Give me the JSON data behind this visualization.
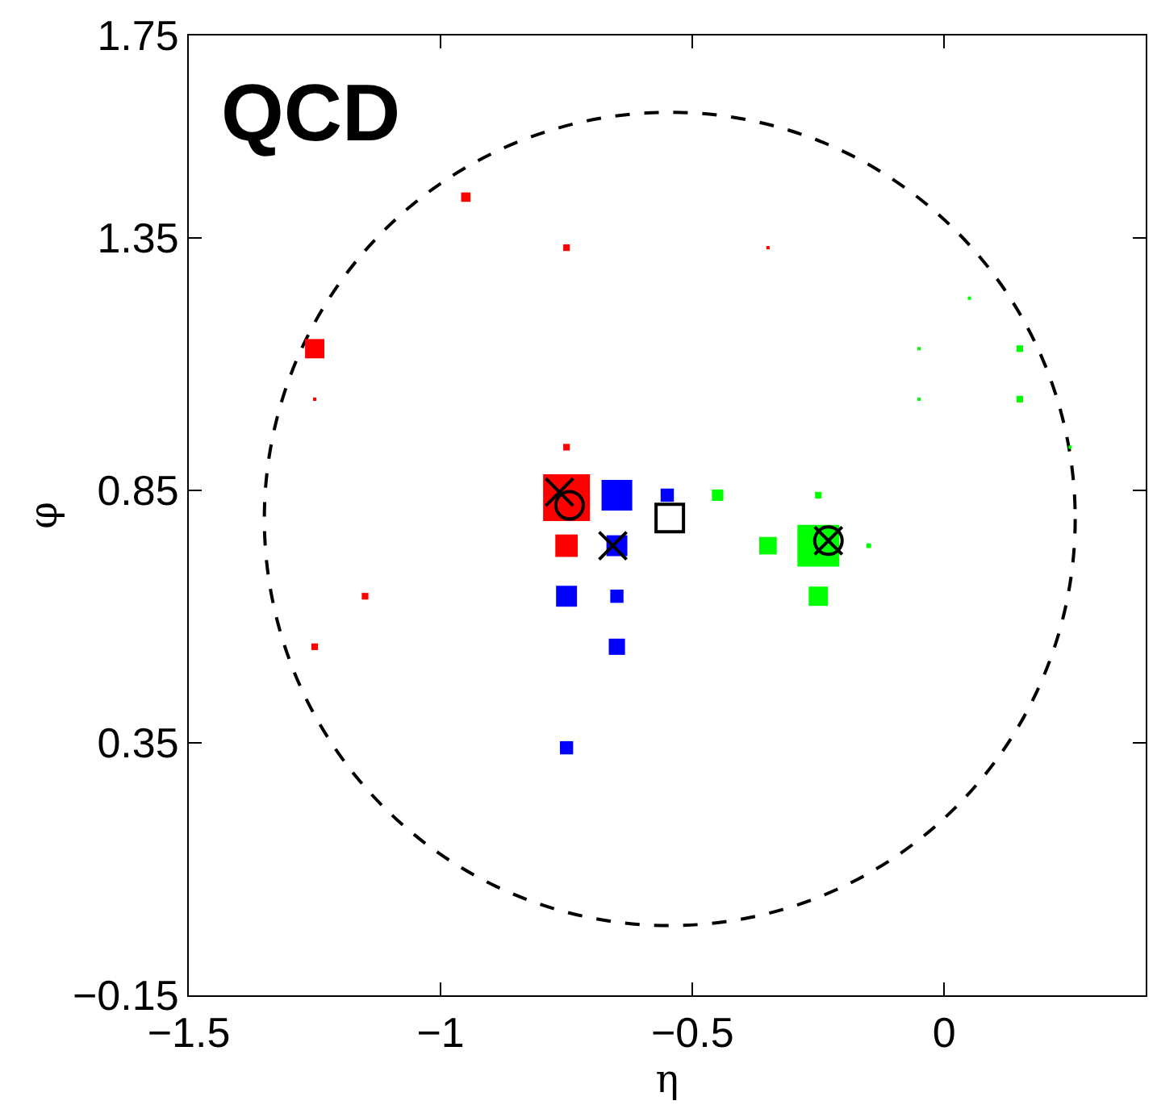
{
  "chart_data": {
    "type": "bubble",
    "xlabel": "η",
    "ylabel": "φ",
    "annotations": [
      "QCD"
    ],
    "xlim": [
      -1.5,
      0.4
    ],
    "ylim": [
      -0.15,
      1.75
    ],
    "xticks": [
      -1.5,
      -1,
      -0.5,
      0
    ],
    "yticks": [
      -0.15,
      0.35,
      0.85,
      1.35,
      1.75
    ],
    "grid": false,
    "series": [
      {
        "marker": "square",
        "color": "#ff0000",
        "x": [
          -0.95,
          -0.75,
          -0.35,
          -1.25,
          -1.25,
          -0.75,
          -0.75,
          -0.75,
          -1.15,
          -1.25
        ],
        "values": [
          1.43,
          1.33,
          1.33,
          1.13,
          1.03,
          0.935,
          0.835,
          0.74,
          0.64,
          0.54
        ],
        "sizes": [
          0.04,
          0.02,
          0.005,
          0.17,
          0.005,
          0.02,
          1,
          0.23,
          0.02,
          0.02
        ]
      },
      {
        "marker": "square",
        "color": "#0000ff",
        "x": [
          -0.65,
          -0.55,
          -0.65,
          -0.75,
          -0.65,
          -0.65,
          -0.75
        ],
        "values": [
          0.84,
          0.84,
          0.74,
          0.64,
          0.64,
          0.54,
          0.34
        ],
        "sizes": [
          0.43,
          0.08,
          0.2,
          0.2,
          0.08,
          0.12,
          0.08
        ]
      },
      {
        "marker": "square",
        "color": "#00ff00",
        "x": [
          -0.45,
          -0.25,
          -0.35,
          -0.25,
          -0.15,
          -0.25,
          0.05,
          -0.05,
          0.15,
          -0.05,
          0.15,
          0.25
        ],
        "values": [
          0.84,
          0.84,
          0.74,
          0.74,
          0.74,
          0.64,
          1.23,
          1.13,
          1.13,
          1.03,
          1.03,
          0.935
        ],
        "sizes": [
          0.06,
          0.02,
          0.14,
          0.8,
          0.01,
          0.17,
          0.005,
          0.005,
          0.02,
          0.005,
          0.02,
          0.005
        ]
      },
      {
        "type": "scatter",
        "marker": "circle",
        "color": "#000000",
        "x": [
          -0.744,
          -0.23
        ],
        "values": [
          0.82,
          0.75
        ]
      },
      {
        "type": "scatter",
        "marker": "cross",
        "color": "#000000",
        "x": [
          -0.764,
          -0.658,
          -0.23
        ],
        "values": [
          0.846,
          0.74,
          0.75
        ]
      },
      {
        "type": "scatter",
        "marker": "square",
        "color": "#000000",
        "x": [
          -0.545
        ],
        "values": [
          0.795
        ]
      }
    ]
  }
}
